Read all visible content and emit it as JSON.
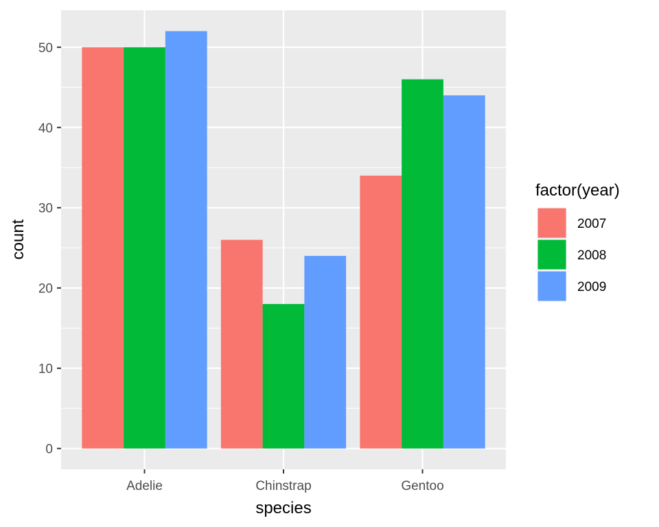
{
  "chart_data": {
    "type": "bar",
    "categories": [
      "Adelie",
      "Chinstrap",
      "Gentoo"
    ],
    "series": [
      {
        "name": "2007",
        "color": "#F8766D",
        "values": [
          50,
          26,
          34
        ]
      },
      {
        "name": "2008",
        "color": "#00BA38",
        "values": [
          50,
          18,
          46
        ]
      },
      {
        "name": "2009",
        "color": "#619CFF",
        "values": [
          52,
          24,
          44
        ]
      }
    ],
    "xlabel": "species",
    "ylabel": "count",
    "yticks": [
      0,
      10,
      20,
      30,
      40,
      50
    ],
    "ylim": [
      -2.6,
      54.6
    ],
    "legend": {
      "title": "factor(year)",
      "position": "right"
    },
    "grid": true,
    "panel_background": "#EBEBEB",
    "grid_color": "#FFFFFF"
  }
}
